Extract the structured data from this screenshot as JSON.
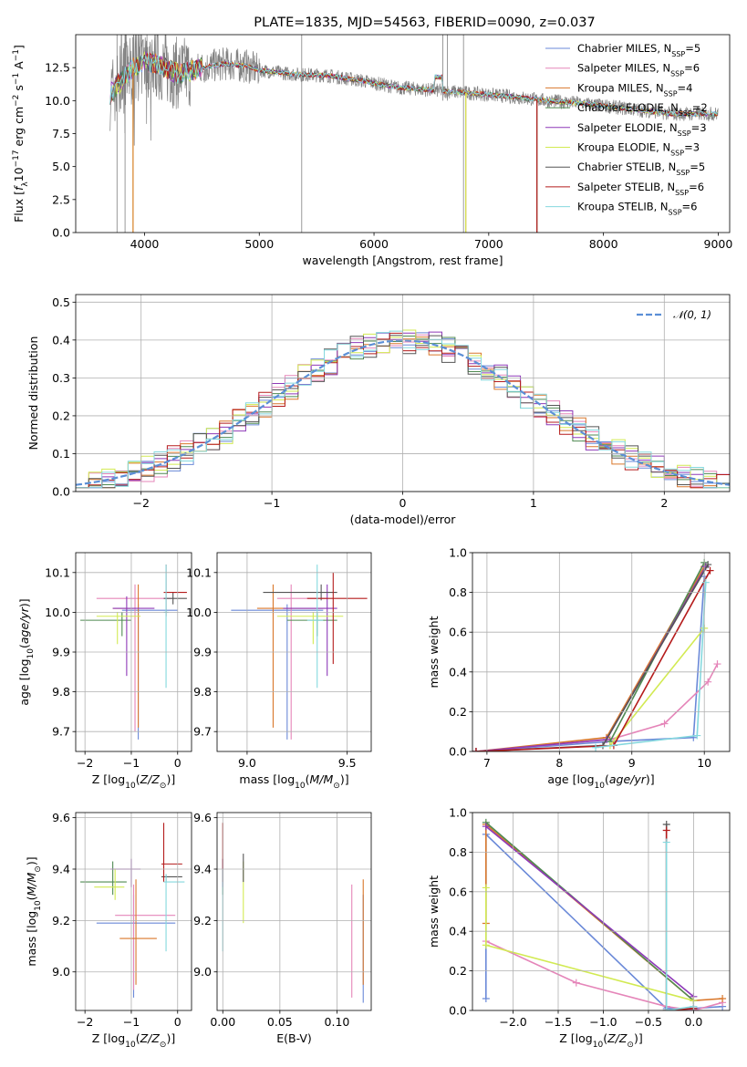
{
  "colors": {
    "s0": "#6a89d8",
    "s1": "#e585b9",
    "s2": "#d9772b",
    "s3": "#4f8a52",
    "s4": "#8e39b8",
    "s5": "#d2ea52",
    "s6": "#555555",
    "s7": "#b51c1c",
    "s8": "#84d8de",
    "obs": "#808080",
    "gauss": "#5b8fd6"
  },
  "chart_data": [
    {
      "id": "spectrum",
      "type": "line",
      "title": "PLATE=1835, MJD=54563, FIBERID=0090, z=0.037",
      "xlabel": "wavelength [Angstrom, rest frame]",
      "ylabel": "Flux [f_λ 10^-17 erg cm^-2 s^-1 A^-1]",
      "xlim": [
        3400,
        9100
      ],
      "ylim": [
        0,
        15
      ],
      "xticks": [
        "4000",
        "5000",
        "6000",
        "7000",
        "8000",
        "9000"
      ],
      "yticks": [
        "0.0",
        "2.5",
        "5.0",
        "7.5",
        "10.0",
        "12.5"
      ],
      "legend_position": "upper right",
      "legend": [
        {
          "text": "Chabrier MILES, N",
          "sub": "SSP",
          "suffix": "=5"
        },
        {
          "text": "Salpeter MILES, N",
          "sub": "SSP",
          "suffix": "=6"
        },
        {
          "text": "Kroupa MILES, N",
          "sub": "SSP",
          "suffix": "=4"
        },
        {
          "text": "Chabrier ELODIE, N",
          "sub": "SSP",
          "suffix": "=2"
        },
        {
          "text": "Salpeter ELODIE, N",
          "sub": "SSP",
          "suffix": "=3"
        },
        {
          "text": "Kroupa ELODIE, N",
          "sub": "SSP",
          "suffix": "=3"
        },
        {
          "text": "Chabrier STELIB, N",
          "sub": "SSP",
          "suffix": "=5"
        },
        {
          "text": "Salpeter STELIB, N",
          "sub": "SSP",
          "suffix": "=6"
        },
        {
          "text": "Kroupa STELIB, N",
          "sub": "SSP",
          "suffix": "=6"
        }
      ],
      "continuum": [
        [
          3700,
          10.5
        ],
        [
          3800,
          11.5
        ],
        [
          3900,
          12.5
        ],
        [
          4000,
          13.0
        ],
        [
          4100,
          12.8
        ],
        [
          4300,
          12.0
        ],
        [
          4500,
          12.5
        ],
        [
          4700,
          12.8
        ],
        [
          4900,
          12.6
        ],
        [
          5000,
          12.3
        ],
        [
          5300,
          12.0
        ],
        [
          5600,
          11.9
        ],
        [
          5900,
          11.5
        ],
        [
          6200,
          11.0
        ],
        [
          6500,
          10.8
        ],
        [
          6800,
          10.6
        ],
        [
          7200,
          10.3
        ],
        [
          7500,
          10.0
        ],
        [
          7800,
          9.8
        ],
        [
          8200,
          9.4
        ],
        [
          8600,
          9.0
        ],
        [
          9000,
          9.0
        ]
      ],
      "model_range": [
        3700,
        9000
      ],
      "model_cutoffs": [
        {
          "series": 5,
          "x": 3900
        },
        {
          "series": 2,
          "x": 3900
        },
        {
          "series": 2,
          "x": 6800
        },
        {
          "series": 5,
          "x": 6800
        },
        {
          "series": 2,
          "x": 7420
        },
        {
          "series": 6,
          "x": 7420
        },
        {
          "series": 7,
          "x": 7420
        }
      ]
    },
    {
      "id": "residual-hist",
      "type": "histogram",
      "xlabel": "(data-model)/error",
      "ylabel": "Normed distribution",
      "xlim": [
        -2.5,
        2.5
      ],
      "ylim": [
        0,
        0.52
      ],
      "xticks": [
        "−2",
        "−1",
        "0",
        "1",
        "2"
      ],
      "yticks": [
        "0.0",
        "0.1",
        "0.2",
        "0.3",
        "0.4",
        "0.5"
      ],
      "legend": "𝒩(0, 1)",
      "bin_width": 0.1,
      "x_start": -2.5,
      "reference": "normal distribution N(0,1)"
    },
    {
      "id": "age-vs-Z",
      "type": "scatter",
      "xlabel": "Z [log10(Z/Z⊙)]",
      "ylabel": "age  [log10(age/yr)]",
      "xlim": [
        -2.2,
        0.3
      ],
      "ylim": [
        9.65,
        10.15
      ],
      "xticks": [
        "−2",
        "−1",
        "0"
      ],
      "yticks": [
        "9.7",
        "9.8",
        "9.9",
        "10.0",
        "10.1"
      ],
      "points": [
        {
          "x": -0.85,
          "xlo": -1.2,
          "xhi": 0.0,
          "y": 10.005,
          "ylo": 9.68,
          "yhi": 10.02
        },
        {
          "x": -0.92,
          "xlo": -1.75,
          "xhi": -0.12,
          "y": 10.035,
          "ylo": 9.7,
          "yhi": 10.07
        },
        {
          "x": -0.85,
          "xlo": -1.4,
          "xhi": -0.95,
          "y": 10.01,
          "ylo": 9.71,
          "yhi": 10.07
        },
        {
          "x": -1.2,
          "xlo": -2.1,
          "xhi": -1.0,
          "y": 9.98,
          "ylo": 9.94,
          "yhi": 10.0
        },
        {
          "x": -1.1,
          "xlo": -1.4,
          "xhi": -0.5,
          "y": 10.01,
          "ylo": 9.84,
          "yhi": 10.04
        },
        {
          "x": -1.3,
          "xlo": -1.75,
          "xhi": -0.8,
          "y": 9.99,
          "ylo": 9.92,
          "yhi": 10.0
        },
        {
          "x": -0.1,
          "xlo": -0.3,
          "xhi": 0.2,
          "y": 10.035,
          "ylo": 10.02,
          "yhi": 10.05
        },
        {
          "x": -0.25,
          "xlo": -0.3,
          "xhi": 0.2,
          "y": 10.05,
          "ylo": 9.99,
          "yhi": 10.12
        },
        {
          "x": -0.25,
          "xlo": -0.3,
          "xhi": -0.2,
          "y": 10.0,
          "ylo": 9.81,
          "yhi": 10.12
        }
      ]
    },
    {
      "id": "age-vs-mass",
      "type": "scatter",
      "xlabel": "mass [log10(M/M⊙)]",
      "ylabel": "",
      "xlim": [
        8.85,
        9.62
      ],
      "ylim": [
        9.65,
        10.15
      ],
      "xticks": [
        "9.0",
        "9.5"
      ],
      "yticks": [
        "9.7",
        "9.8",
        "9.9",
        "10.0",
        "10.1"
      ],
      "points": [
        {
          "x": 9.2,
          "xlo": 8.92,
          "xhi": 9.38,
          "y": 10.005,
          "ylo": 9.68,
          "yhi": 10.02
        },
        {
          "x": 9.22,
          "xlo": 9.15,
          "xhi": 9.4,
          "y": 10.035,
          "ylo": 9.68,
          "yhi": 10.07
        },
        {
          "x": 9.13,
          "xlo": 9.05,
          "xhi": 9.38,
          "y": 10.01,
          "ylo": 9.71,
          "yhi": 10.07
        },
        {
          "x": 9.35,
          "xlo": 9.2,
          "xhi": 9.45,
          "y": 9.98,
          "ylo": 9.94,
          "yhi": 10.0
        },
        {
          "x": 9.4,
          "xlo": 9.18,
          "xhi": 9.45,
          "y": 10.01,
          "ylo": 9.84,
          "yhi": 10.07
        },
        {
          "x": 9.33,
          "xlo": 9.15,
          "xhi": 9.48,
          "y": 9.99,
          "ylo": 9.92,
          "yhi": 10.0
        },
        {
          "x": 9.37,
          "xlo": 9.08,
          "xhi": 9.45,
          "y": 10.05,
          "ylo": 10.03,
          "yhi": 10.07
        },
        {
          "x": 9.43,
          "xlo": 9.3,
          "xhi": 9.6,
          "y": 10.035,
          "ylo": 9.87,
          "yhi": 10.1
        },
        {
          "x": 9.35,
          "xlo": 9.3,
          "xhi": 9.38,
          "y": 9.98,
          "ylo": 9.81,
          "yhi": 10.12
        }
      ]
    },
    {
      "id": "mass-weight-vs-age",
      "type": "line",
      "xlabel": "age  [log10(age/yr)]",
      "ylabel": "mass weight",
      "xlim": [
        6.8,
        10.35
      ],
      "ylim": [
        0,
        1
      ],
      "xticks": [
        "7",
        "8",
        "9",
        "10"
      ],
      "yticks": [
        "0.0",
        "0.2",
        "0.4",
        "0.6",
        "0.8",
        "1.0"
      ],
      "series": [
        {
          "x": [
            6.85,
            8.7,
            9.85,
            10.0
          ],
          "y": [
            0.0,
            0.05,
            0.07,
            0.88
          ]
        },
        {
          "x": [
            6.85,
            8.7,
            9.45,
            10.05,
            10.18
          ],
          "y": [
            0.0,
            0.06,
            0.14,
            0.35,
            0.44
          ]
        },
        {
          "x": [
            6.85,
            8.65,
            10.0
          ],
          "y": [
            0.0,
            0.07,
            0.93
          ]
        },
        {
          "x": [
            8.7,
            10.0
          ],
          "y": [
            0.05,
            0.95
          ]
        },
        {
          "x": [
            6.85,
            8.65,
            10.02
          ],
          "y": [
            0.0,
            0.06,
            0.93
          ]
        },
        {
          "x": [
            8.7,
            10.0
          ],
          "y": [
            0.03,
            0.62
          ]
        },
        {
          "x": [
            6.85,
            8.6,
            10.05
          ],
          "y": [
            0.0,
            0.03,
            0.94
          ]
        },
        {
          "x": [
            6.85,
            8.75,
            10.08
          ],
          "y": [
            0.0,
            0.03,
            0.91
          ]
        },
        {
          "x": [
            8.5,
            9.9,
            10.02
          ],
          "y": [
            0.02,
            0.08,
            0.85
          ]
        }
      ]
    },
    {
      "id": "mass-vs-Z",
      "type": "scatter",
      "xlabel": "Z [log10(Z/Z⊙)]",
      "ylabel": "mass [log10(M/M⊙)]",
      "xlim": [
        -2.2,
        0.3
      ],
      "ylim": [
        8.85,
        9.62
      ],
      "xticks": [
        "−2",
        "−1",
        "0"
      ],
      "yticks": [
        "9.0",
        "9.2",
        "9.4",
        "9.6"
      ],
      "points": [
        {
          "x": -0.95,
          "xlo": -1.75,
          "xhi": -0.05,
          "y": 9.19,
          "ylo": 8.9,
          "yhi": 9.3
        },
        {
          "x": -0.95,
          "xlo": -1.35,
          "xhi": -0.05,
          "y": 9.22,
          "ylo": 8.93,
          "yhi": 9.34
        },
        {
          "x": -0.9,
          "xlo": -1.25,
          "xhi": -0.45,
          "y": 9.13,
          "ylo": 8.95,
          "yhi": 9.36
        },
        {
          "x": -1.4,
          "xlo": -2.1,
          "xhi": -1.1,
          "y": 9.35,
          "ylo": 9.3,
          "yhi": 9.43
        },
        {
          "x": -1.0,
          "xlo": -1.45,
          "xhi": -0.8,
          "y": 9.4,
          "ylo": 9.33,
          "yhi": 9.44
        },
        {
          "x": -1.35,
          "xlo": -1.8,
          "xhi": -1.15,
          "y": 9.33,
          "ylo": 9.28,
          "yhi": 9.4
        },
        {
          "x": -0.25,
          "xlo": -0.35,
          "xhi": 0.1,
          "y": 9.37,
          "ylo": 9.35,
          "yhi": 9.38
        },
        {
          "x": -0.3,
          "xlo": -0.35,
          "xhi": 0.1,
          "y": 9.42,
          "ylo": 9.35,
          "yhi": 9.58
        },
        {
          "x": -0.25,
          "xlo": -0.3,
          "xhi": 0.15,
          "y": 9.35,
          "ylo": 9.08,
          "yhi": 9.38
        }
      ]
    },
    {
      "id": "mass-vs-ebv",
      "type": "scatter",
      "xlabel": "E(B-V)",
      "ylabel": "",
      "xlim": [
        -0.005,
        0.13
      ],
      "ylim": [
        8.85,
        9.62
      ],
      "xticks": [
        "0.00",
        "0.05",
        "0.10"
      ],
      "yticks": [
        "9.0",
        "9.2",
        "9.4",
        "9.6"
      ],
      "points": [
        {
          "x": 0.123,
          "y": 9.19,
          "ylo": 8.88,
          "yhi": 9.3
        },
        {
          "x": 0.113,
          "y": 9.22,
          "ylo": 8.9,
          "yhi": 9.34
        },
        {
          "x": 0.123,
          "y": 9.13,
          "ylo": 8.95,
          "yhi": 9.36
        },
        {
          "x": 0.0,
          "y": 9.35,
          "ylo": 9.3,
          "yhi": 9.44
        },
        {
          "x": 0.0,
          "y": 9.4,
          "ylo": 9.33,
          "yhi": 9.44
        },
        {
          "x": 0.018,
          "y": 9.33,
          "ylo": 9.19,
          "yhi": 9.43
        },
        {
          "x": 0.018,
          "y": 9.37,
          "ylo": 9.35,
          "yhi": 9.46
        },
        {
          "x": 0.0,
          "y": 9.45,
          "ylo": 9.35,
          "yhi": 9.58
        },
        {
          "x": 0.0,
          "y": 9.35,
          "ylo": 9.08,
          "yhi": 9.4
        }
      ]
    },
    {
      "id": "mass-weight-vs-Z",
      "type": "line",
      "xlabel": "Z [log10(Z/Z⊙)]",
      "ylabel": "mass weight",
      "xlim": [
        -2.45,
        0.4
      ],
      "ylim": [
        0,
        1
      ],
      "xticks": [
        "−2.0",
        "−1.5",
        "−1.0",
        "−0.5",
        "0.0"
      ],
      "yticks": [
        "0.0",
        "0.2",
        "0.4",
        "0.6",
        "0.8",
        "1.0"
      ],
      "series": [
        {
          "x": [
            -2.3,
            -2.3,
            -0.3,
            0.0,
            0.32
          ],
          "y": [
            0.06,
            0.89,
            0.01,
            0.01,
            0.02
          ]
        },
        {
          "x": [
            -2.3,
            -1.3,
            -0.3,
            0.0,
            0.32
          ],
          "y": [
            0.35,
            0.14,
            0.02,
            0.0,
            0.04
          ]
        },
        {
          "x": [
            -2.3,
            -2.3,
            0.0,
            0.32
          ],
          "y": [
            0.44,
            0.94,
            0.05,
            0.06
          ]
        },
        {
          "x": [
            -2.3,
            0.0
          ],
          "y": [
            0.95,
            0.05
          ]
        },
        {
          "x": [
            -2.3,
            0.0
          ],
          "y": [
            0.93,
            0.07
          ]
        },
        {
          "x": [
            -2.3,
            -2.3,
            0.0
          ],
          "y": [
            0.62,
            0.33,
            0.05
          ]
        },
        {
          "x": [
            -0.3,
            -0.3,
            0.0
          ],
          "y": [
            0.94,
            0.0,
            0.01
          ]
        },
        {
          "x": [
            -0.3,
            -0.3,
            0.0
          ],
          "y": [
            0.91,
            0.0,
            0.01
          ]
        },
        {
          "x": [
            -0.3,
            -0.3,
            0.0
          ],
          "y": [
            0.85,
            0.0,
            0.02
          ]
        }
      ]
    }
  ]
}
